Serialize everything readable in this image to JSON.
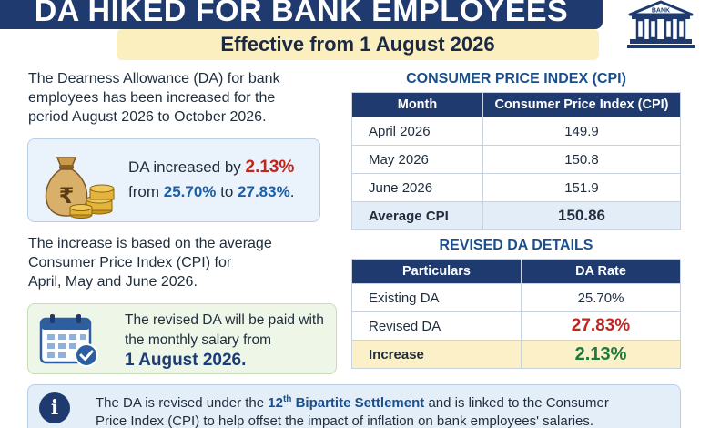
{
  "header": {
    "title": "DA Hiked for Bank Employees",
    "subtitle": "Effective from 1 August 2026",
    "bank_icon_label": "BANK"
  },
  "intro": {
    "line1": "The Dearness Allowance (DA) for bank",
    "line2": "employees has been increased for the",
    "line3": "period August 2026 to October 2026."
  },
  "da_card": {
    "prefix": "DA increased by ",
    "increase": "2.13%",
    "from_word": "from ",
    "old_rate": "25.70%",
    "to_word": " to ",
    "new_rate": "27.83%",
    "end": "."
  },
  "basis": {
    "line1": "The increase is based on the average",
    "line2": "Consumer Price Index (CPI) for",
    "line3": "April, May and June 2026."
  },
  "pay_card": {
    "line1": "The revised DA will be paid with",
    "line2": "the monthly salary from",
    "date": "1 August 2026."
  },
  "cpi_section": {
    "title": "Consumer Price Index (CPI)",
    "headers": [
      "Month",
      "Consumer Price Index (CPI)"
    ],
    "rows": [
      [
        "April 2026",
        "149.9"
      ],
      [
        "May 2026",
        "150.8"
      ],
      [
        "June 2026",
        "151.9"
      ]
    ],
    "average_label": "Average CPI",
    "average_value": "150.86"
  },
  "da_section": {
    "title": "Revised DA Details",
    "headers": [
      "Particulars",
      "DA Rate"
    ],
    "rows": [
      [
        "Existing DA",
        "25.70%"
      ],
      [
        "Revised DA",
        "27.83%"
      ]
    ],
    "increase_label": "Increase",
    "increase_value": "2.13%"
  },
  "info": {
    "icon": "i",
    "text1": "The DA is revised under the ",
    "ordinal": "12",
    "ordinal_suffix": "th",
    "settlement": " Bipartite Settlement",
    "text2": " and is linked to the Consumer",
    "line2": "Price Index (CPI) to help offset the impact of inflation on bank employees' salaries."
  },
  "colors": {
    "navy": "#1e3a6e",
    "highlight_red": "#c0261f",
    "highlight_blue": "#1b5fa8",
    "highlight_green": "#1e7a3c",
    "cream": "#fbefc0"
  }
}
